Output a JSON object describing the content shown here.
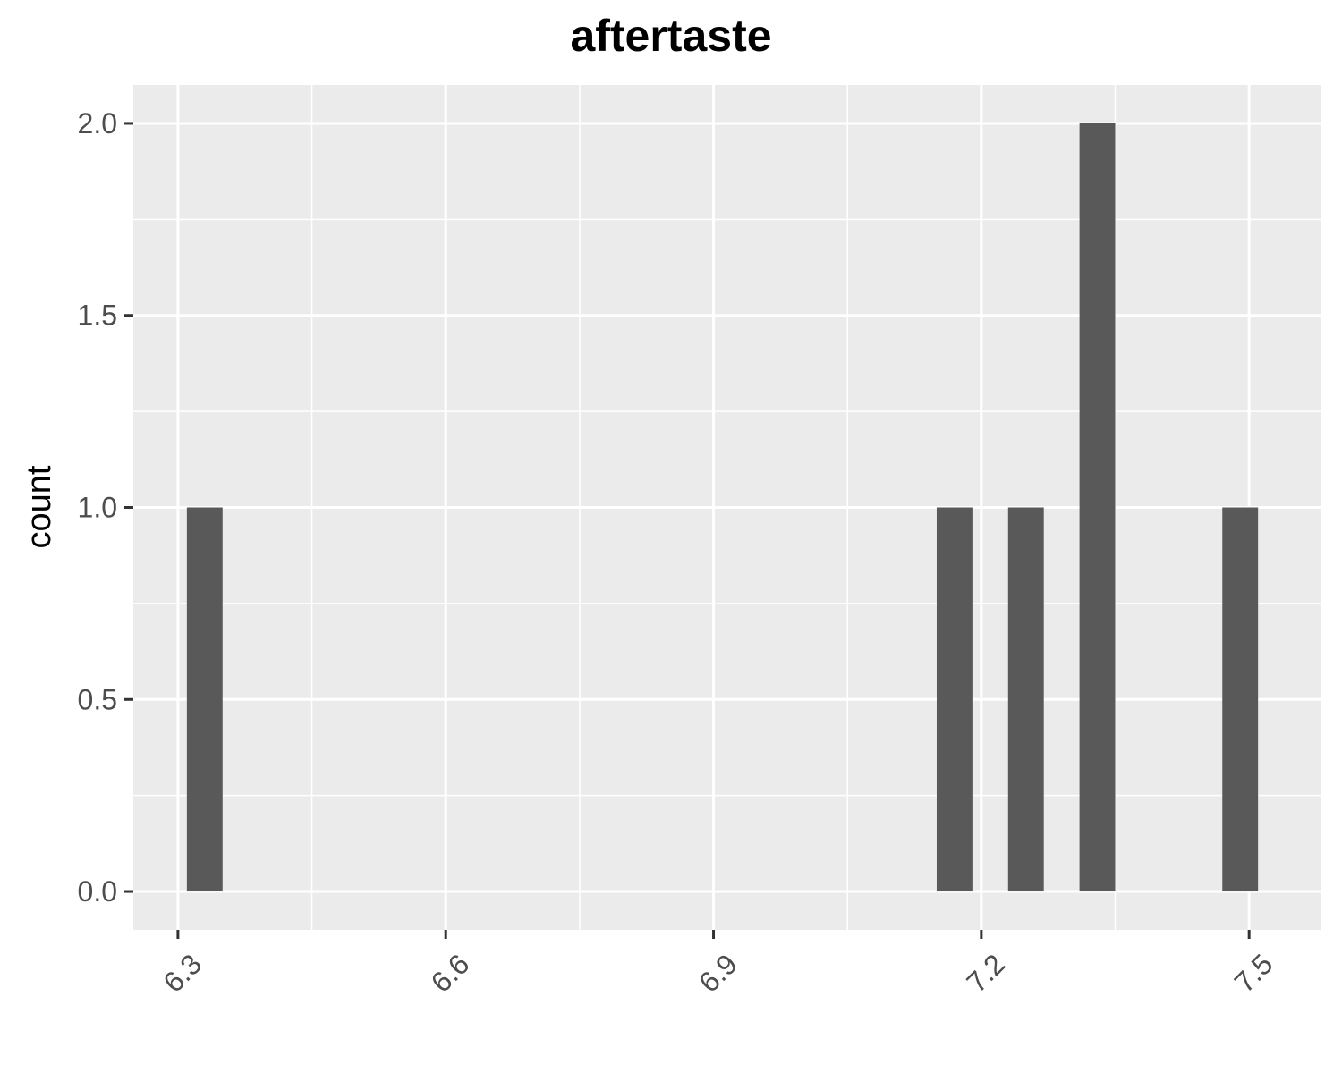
{
  "chart_data": {
    "type": "bar",
    "title": "aftertaste",
    "xlabel": "",
    "ylabel": "count",
    "bin_width": 0.04,
    "bins": [
      {
        "center": 6.33,
        "count": 1
      },
      {
        "center": 7.17,
        "count": 1
      },
      {
        "center": 7.25,
        "count": 1
      },
      {
        "center": 7.33,
        "count": 2
      },
      {
        "center": 7.49,
        "count": 1
      }
    ],
    "xlim": [
      6.25,
      7.58
    ],
    "ylim": [
      -0.1,
      2.1
    ],
    "x_ticks": [
      6.3,
      6.6,
      6.9,
      7.2,
      7.5
    ],
    "x_tick_labels": [
      "6.3",
      "6.6",
      "6.9",
      "7.2",
      "7.5"
    ],
    "y_ticks": [
      0,
      0.5,
      1,
      1.5,
      2
    ],
    "y_tick_labels": [
      "0.0",
      "0.5",
      "1.0",
      "1.5",
      "2.0"
    ],
    "x_tick_label_rotation": -45,
    "grid": true,
    "legend": "none",
    "colors": {
      "panel_background": "#ebebeb",
      "grid_line": "#ffffff",
      "bar_fill": "#595959",
      "tick_label": "#4d4d4d",
      "tick_mark": "#333333"
    }
  }
}
